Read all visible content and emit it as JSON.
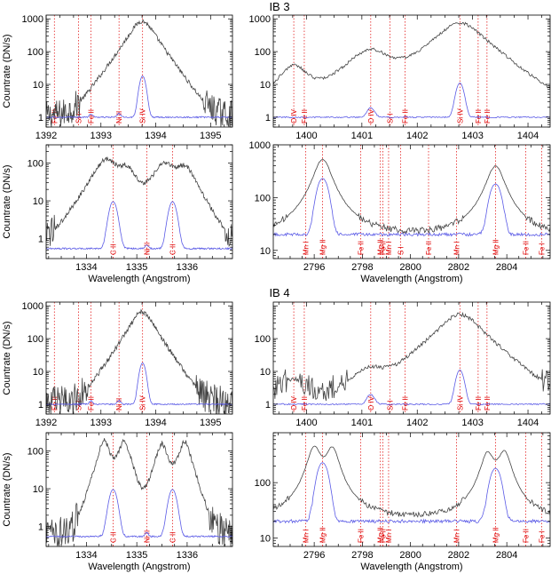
{
  "figure": {
    "sections": [
      {
        "title": "IB 3"
      },
      {
        "title": "IB 4"
      }
    ],
    "ylabel": "Countrate (DN/s)",
    "xlabel": "Wavelength (Angstrom)",
    "colors": {
      "observed": "#444444",
      "model": "#5a5ae6",
      "lines": "#e00000",
      "axes": "#000000"
    }
  },
  "chart_data": [
    {
      "id": "ib3-a",
      "type": "line",
      "section": 0,
      "xlim": [
        1392.0,
        1395.4
      ],
      "ylim": [
        0.5,
        1300
      ],
      "yscale": "log",
      "xticks": [
        1392,
        1393,
        1394,
        1395
      ],
      "yticks": [
        1,
        10,
        100,
        1000
      ],
      "xlabel_shown": false,
      "lines": [
        {
          "label": "Fe II",
          "x": 1392.15
        },
        {
          "label": "Si I",
          "x": 1392.59
        },
        {
          "label": "Fe II",
          "x": 1392.82
        },
        {
          "label": "Ni II",
          "x": 1393.33
        },
        {
          "label": "Si IV",
          "x": 1393.76
        }
      ],
      "series": [
        {
          "name": "observed",
          "profile": "obs",
          "base": 1.1,
          "noise": 0.45,
          "peaks": [
            [
              1393.75,
              850,
              0.26
            ]
          ]
        },
        {
          "name": "model",
          "profile": "model",
          "base": 1.0,
          "noise": 0.02,
          "peaks": [
            [
              1393.76,
              17,
              0.05
            ],
            [
              1393.33,
              0.3,
              0.03
            ],
            [
              1392.82,
              0.25,
              0.03
            ]
          ]
        }
      ]
    },
    {
      "id": "ib3-b",
      "type": "line",
      "section": 0,
      "xlim": [
        1399.4,
        1404.4
      ],
      "ylim": [
        0.5,
        1300
      ],
      "yscale": "log",
      "xticks": [
        1400,
        1401,
        1402,
        1403,
        1404
      ],
      "yticks": [
        1,
        10,
        100,
        1000
      ],
      "xlabel_shown": false,
      "lines": [
        {
          "label": "O IV",
          "x": 1399.77
        },
        {
          "label": "Fe II",
          "x": 1399.96
        },
        {
          "label": "O IV",
          "x": 1401.16
        },
        {
          "label": "Si I",
          "x": 1401.51
        },
        {
          "label": "Fe II",
          "x": 1401.78
        },
        {
          "label": "Si IV",
          "x": 1402.77
        },
        {
          "label": "Fe II",
          "x": 1403.1
        },
        {
          "label": "Fe II",
          "x": 1403.26
        }
      ],
      "series": [
        {
          "name": "observed",
          "profile": "obs",
          "base": 2.0,
          "noise": 0.3,
          "peaks": [
            [
              1399.77,
              35,
              0.3
            ],
            [
              1401.16,
              110,
              0.45
            ],
            [
              1402.77,
              750,
              0.45
            ]
          ]
        },
        {
          "name": "model",
          "profile": "model",
          "base": 1.0,
          "noise": 0.02,
          "peaks": [
            [
              1401.16,
              1.0,
              0.06
            ],
            [
              1402.77,
              10,
              0.06
            ]
          ]
        }
      ]
    },
    {
      "id": "ib3-c",
      "type": "line",
      "section": 0,
      "xlim": [
        1333.2,
        1336.9
      ],
      "ylim": [
        0.3,
        300
      ],
      "yscale": "log",
      "xticks": [
        1334,
        1335,
        1336
      ],
      "yticks": [
        1,
        10,
        100
      ],
      "xlabel_shown": true,
      "lines": [
        {
          "label": "C II",
          "x": 1334.53
        },
        {
          "label": "Ni II",
          "x": 1335.2
        },
        {
          "label": "C II",
          "x": 1335.71
        }
      ],
      "series": [
        {
          "name": "observed",
          "profile": "obs",
          "base": 0.6,
          "noise": 0.4,
          "peaks": [
            [
              1334.4,
              120,
              0.3
            ],
            [
              1334.8,
              60,
              0.22
            ],
            [
              1335.55,
              90,
              0.28
            ],
            [
              1335.95,
              70,
              0.25
            ]
          ]
        },
        {
          "name": "model",
          "profile": "model",
          "base": 0.55,
          "noise": 0.02,
          "peaks": [
            [
              1334.53,
              9,
              0.07
            ],
            [
              1335.71,
              9,
              0.07
            ],
            [
              1335.2,
              0.15,
              0.03
            ]
          ]
        }
      ]
    },
    {
      "id": "ib3-d",
      "type": "line",
      "section": 0,
      "xlim": [
        2794.3,
        2805.8
      ],
      "ylim": [
        7,
        1000
      ],
      "yscale": "log",
      "xticks": [
        2796,
        2798,
        2800,
        2802,
        2804
      ],
      "yticks": [
        10,
        100,
        1000
      ],
      "xlabel_shown": true,
      "lines": [
        {
          "label": "Mn I",
          "x": 2795.64
        },
        {
          "label": "Mg II",
          "x": 2796.35
        },
        {
          "label": "Fe II",
          "x": 2797.93
        },
        {
          "label": "Mg II",
          "x": 2798.75
        },
        {
          "label": "Fe II",
          "x": 2798.85
        },
        {
          "label": "Mn I",
          "x": 2799.09
        },
        {
          "label": "S I",
          "x": 2799.59
        },
        {
          "label": "Fe II",
          "x": 2800.75
        },
        {
          "label": "Mn I",
          "x": 2801.91
        },
        {
          "label": "Mg II",
          "x": 2803.53
        },
        {
          "label": "Fe II",
          "x": 2804.79
        },
        {
          "label": "Fe I",
          "x": 2805.45
        }
      ],
      "series": [
        {
          "name": "observed",
          "profile": "mgobs",
          "base": 15,
          "noise": 0.06,
          "peaks": [
            [
              2796.35,
              520,
              0.45
            ],
            [
              2803.53,
              380,
              0.45
            ]
          ]
        },
        {
          "name": "model",
          "profile": "mgmodel",
          "base": 20,
          "noise": 0.03,
          "peaks": [
            [
              2796.35,
              220,
              0.3
            ],
            [
              2803.53,
              170,
              0.3
            ]
          ]
        }
      ]
    },
    {
      "id": "ib4-a",
      "type": "line",
      "section": 1,
      "xlim": [
        1392.0,
        1395.4
      ],
      "ylim": [
        0.5,
        1300
      ],
      "yscale": "log",
      "xticks": [
        1392,
        1393,
        1394,
        1395
      ],
      "yticks": [
        1,
        10,
        100,
        1000
      ],
      "xlabel_shown": false,
      "lines": [
        {
          "label": "Fe II",
          "x": 1392.15
        },
        {
          "label": "Si I",
          "x": 1392.59
        },
        {
          "label": "Fe II",
          "x": 1392.82
        },
        {
          "label": "Ni II",
          "x": 1393.33
        },
        {
          "label": "Si IV",
          "x": 1393.76
        }
      ],
      "series": [
        {
          "name": "observed",
          "profile": "obs",
          "base": 1.1,
          "noise": 0.5,
          "peaks": [
            [
              1393.75,
              650,
              0.24
            ]
          ]
        },
        {
          "name": "model",
          "profile": "model",
          "base": 1.0,
          "noise": 0.02,
          "peaks": [
            [
              1393.76,
              17,
              0.05
            ],
            [
              1393.33,
              0.3,
              0.03
            ],
            [
              1392.82,
              0.25,
              0.03
            ]
          ]
        }
      ]
    },
    {
      "id": "ib4-b",
      "type": "line",
      "section": 1,
      "xlim": [
        1399.4,
        1404.4
      ],
      "ylim": [
        0.5,
        1300
      ],
      "yscale": "log",
      "xticks": [
        1400,
        1401,
        1402,
        1403,
        1404
      ],
      "yticks": [
        1,
        10,
        100
      ],
      "xlabel_shown": false,
      "lines": [
        {
          "label": "O IV",
          "x": 1399.77
        },
        {
          "label": "Fe II",
          "x": 1399.96
        },
        {
          "label": "O IV",
          "x": 1401.16
        },
        {
          "label": "Si I",
          "x": 1401.51
        },
        {
          "label": "Fe II",
          "x": 1401.78
        },
        {
          "label": "Si IV",
          "x": 1402.77
        },
        {
          "label": "Fe II",
          "x": 1403.1
        },
        {
          "label": "Fe II",
          "x": 1403.26
        }
      ],
      "series": [
        {
          "name": "observed",
          "profile": "obs",
          "base": 1.8,
          "noise": 0.4,
          "peaks": [
            [
              1399.77,
              4,
              0.35
            ],
            [
              1401.16,
              10,
              0.4
            ],
            [
              1402.77,
              550,
              0.4
            ]
          ]
        },
        {
          "name": "model",
          "profile": "model",
          "base": 1.0,
          "noise": 0.02,
          "peaks": [
            [
              1401.16,
              1.0,
              0.06
            ],
            [
              1402.77,
              10,
              0.06
            ]
          ]
        }
      ]
    },
    {
      "id": "ib4-c",
      "type": "line",
      "section": 1,
      "xlim": [
        1333.2,
        1336.9
      ],
      "ylim": [
        0.3,
        300
      ],
      "yscale": "log",
      "xticks": [
        1334,
        1335,
        1336
      ],
      "yticks": [
        1,
        10,
        100
      ],
      "xlabel_shown": true,
      "lines": [
        {
          "label": "C II",
          "x": 1334.53
        },
        {
          "label": "Ni II",
          "x": 1335.2
        },
        {
          "label": "C II",
          "x": 1335.71
        }
      ],
      "series": [
        {
          "name": "observed",
          "profile": "obs",
          "base": 0.7,
          "noise": 0.45,
          "peaks": [
            [
              1334.35,
              180,
              0.14
            ],
            [
              1334.75,
              170,
              0.14
            ],
            [
              1335.5,
              150,
              0.14
            ],
            [
              1335.95,
              170,
              0.14
            ]
          ]
        },
        {
          "name": "model",
          "profile": "model",
          "base": 0.55,
          "noise": 0.02,
          "peaks": [
            [
              1334.53,
              9,
              0.07
            ],
            [
              1335.71,
              9,
              0.07
            ],
            [
              1335.2,
              0.15,
              0.03
            ]
          ]
        }
      ]
    },
    {
      "id": "ib4-d",
      "type": "line",
      "section": 1,
      "xlim": [
        2794.3,
        2805.8
      ],
      "ylim": [
        7,
        800
      ],
      "yscale": "log",
      "xticks": [
        2796,
        2798,
        2800,
        2802,
        2804
      ],
      "yticks": [
        10,
        100
      ],
      "xlabel_shown": true,
      "lines": [
        {
          "label": "Mn I",
          "x": 2795.64
        },
        {
          "label": "Mg II",
          "x": 2796.35
        },
        {
          "label": "Fe II",
          "x": 2797.93
        },
        {
          "label": "Mg II",
          "x": 2798.75
        },
        {
          "label": "Fe II",
          "x": 2798.85
        },
        {
          "label": "Mn I",
          "x": 2799.09
        },
        {
          "label": "Mn I",
          "x": 2801.91
        },
        {
          "label": "Mg II",
          "x": 2803.53
        },
        {
          "label": "Fe II",
          "x": 2804.79
        },
        {
          "label": "Fe I",
          "x": 2805.45
        }
      ],
      "series": [
        {
          "name": "observed",
          "profile": "mgobs2",
          "base": 18,
          "noise": 0.05,
          "peaks": [
            [
              2796.0,
              400,
              0.35
            ],
            [
              2796.75,
              380,
              0.35
            ],
            [
              2803.2,
              300,
              0.35
            ],
            [
              2803.9,
              320,
              0.35
            ]
          ]
        },
        {
          "name": "model",
          "profile": "mgmodel",
          "base": 20,
          "noise": 0.03,
          "peaks": [
            [
              2796.35,
              220,
              0.3
            ],
            [
              2803.53,
              170,
              0.3
            ]
          ]
        }
      ]
    }
  ]
}
